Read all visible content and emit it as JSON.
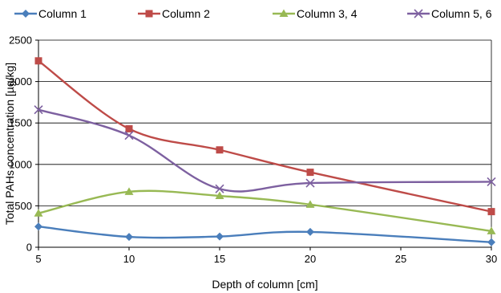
{
  "chart_data": {
    "type": "line",
    "title": "",
    "xlabel": "Depth of column [cm]",
    "ylabel": "Total PAHs concentration [µg/kg]",
    "xlim": [
      5,
      30
    ],
    "ylim": [
      0,
      2500
    ],
    "x_ticks": [
      5,
      10,
      15,
      20,
      25,
      30
    ],
    "y_ticks": [
      0,
      500,
      1000,
      1500,
      2000,
      2500
    ],
    "x_tick_labels": [
      "5",
      "10",
      "15",
      "20",
      "25",
      "30"
    ],
    "y_tick_labels": [
      "0",
      "500",
      "1000",
      "1500",
      "2000",
      "2500"
    ],
    "grid": "horizontal",
    "legend_position": "top",
    "smooth": true,
    "series": [
      {
        "name": "Column 1",
        "color": "#4a7ebb",
        "marker": "diamond",
        "x": [
          5,
          10,
          15,
          20,
          30
        ],
        "y": [
          250,
          125,
          130,
          185,
          60
        ]
      },
      {
        "name": "Column 2",
        "color": "#be4b48",
        "marker": "square",
        "x": [
          5,
          10,
          15,
          20,
          30
        ],
        "y": [
          2250,
          1430,
          1175,
          905,
          430
        ]
      },
      {
        "name": "Column 3, 4",
        "color": "#98b954",
        "marker": "triangle",
        "x": [
          5,
          10,
          15,
          20,
          30
        ],
        "y": [
          410,
          670,
          620,
          515,
          195
        ]
      },
      {
        "name": "Column 5, 6",
        "color": "#7d60a0",
        "marker": "x",
        "x": [
          5,
          10,
          15,
          20,
          30
        ],
        "y": [
          1660,
          1350,
          705,
          775,
          790
        ]
      }
    ]
  }
}
